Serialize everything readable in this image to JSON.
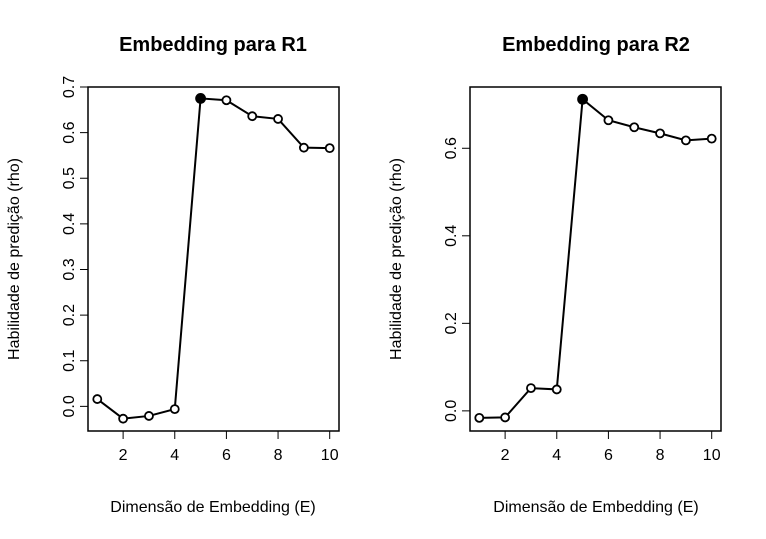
{
  "chart_data": [
    {
      "type": "line",
      "title": "Embedding para R1",
      "xlabel": "Dimensão de Embedding (E)",
      "ylabel": "Habilidade de predição (rho)",
      "xlim": [
        0.64,
        10.36
      ],
      "ylim": [
        -0.054,
        0.7
      ],
      "xticks": [
        2,
        4,
        6,
        8,
        10
      ],
      "xtick_labels": [
        "2",
        "4",
        "6",
        "8",
        "10"
      ],
      "yticks": [
        0.0,
        0.1,
        0.2,
        0.3,
        0.4,
        0.5,
        0.6,
        0.7
      ],
      "ytick_labels": [
        "0.0",
        "0.1",
        "0.2",
        "0.3",
        "0.4",
        "0.5",
        "0.6",
        "0.7"
      ],
      "grid": false,
      "x": [
        1,
        2,
        3,
        4,
        5,
        6,
        7,
        8,
        9,
        10
      ],
      "y": [
        0.016,
        -0.027,
        -0.021,
        -0.006,
        0.675,
        0.671,
        0.636,
        0.63,
        0.567,
        0.566
      ],
      "highlight_index": 4,
      "line_color": "#000000",
      "marker_color": "#000000"
    },
    {
      "type": "line",
      "title": "Embedding para R2",
      "xlabel": "Dimensão de Embedding (E)",
      "ylabel": "Habilidade de predição (rho)",
      "xlim": [
        0.64,
        10.36
      ],
      "ylim": [
        -0.046,
        0.74
      ],
      "xticks": [
        2,
        4,
        6,
        8,
        10
      ],
      "xtick_labels": [
        "2",
        "4",
        "6",
        "8",
        "10"
      ],
      "yticks": [
        0.0,
        0.2,
        0.4,
        0.6
      ],
      "ytick_labels": [
        "0.0",
        "0.2",
        "0.4",
        "0.6"
      ],
      "grid": false,
      "x": [
        1,
        2,
        3,
        4,
        5,
        6,
        7,
        8,
        9,
        10
      ],
      "y": [
        -0.016,
        -0.015,
        0.052,
        0.049,
        0.712,
        0.664,
        0.648,
        0.634,
        0.618,
        0.622
      ],
      "highlight_index": 4,
      "line_color": "#000000",
      "marker_color": "#000000"
    }
  ]
}
